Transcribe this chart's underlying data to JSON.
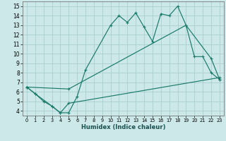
{
  "xlabel": "Humidex (Indice chaleur)",
  "bg_color": "#cce8e8",
  "grid_color": "#aacfcf",
  "line_color": "#1a7a6a",
  "xlim": [
    -0.5,
    23.5
  ],
  "ylim": [
    3.5,
    15.5
  ],
  "xticks": [
    0,
    1,
    2,
    3,
    4,
    5,
    6,
    7,
    8,
    9,
    10,
    11,
    12,
    13,
    14,
    15,
    16,
    17,
    18,
    19,
    20,
    21,
    22,
    23
  ],
  "yticks": [
    4,
    5,
    6,
    7,
    8,
    9,
    10,
    11,
    12,
    13,
    14,
    15
  ],
  "line_jagged_x": [
    0,
    1,
    2,
    3,
    4,
    5,
    6,
    7,
    10,
    11,
    12,
    13,
    14,
    15,
    16,
    17,
    18,
    19,
    20,
    21,
    22,
    23
  ],
  "line_jagged_y": [
    6.5,
    5.8,
    5.0,
    4.5,
    3.8,
    3.8,
    5.5,
    8.3,
    13.0,
    14.0,
    13.3,
    14.3,
    12.8,
    11.3,
    14.2,
    14.0,
    15.0,
    13.0,
    9.7,
    9.7,
    8.0,
    7.3
  ],
  "line_upper_x": [
    0,
    5,
    19,
    22,
    23
  ],
  "line_upper_y": [
    6.5,
    6.3,
    13.0,
    9.5,
    7.3
  ],
  "line_lower_x": [
    0,
    1,
    3,
    4,
    5,
    23
  ],
  "line_lower_y": [
    6.5,
    5.8,
    4.5,
    3.8,
    4.8,
    7.5
  ]
}
